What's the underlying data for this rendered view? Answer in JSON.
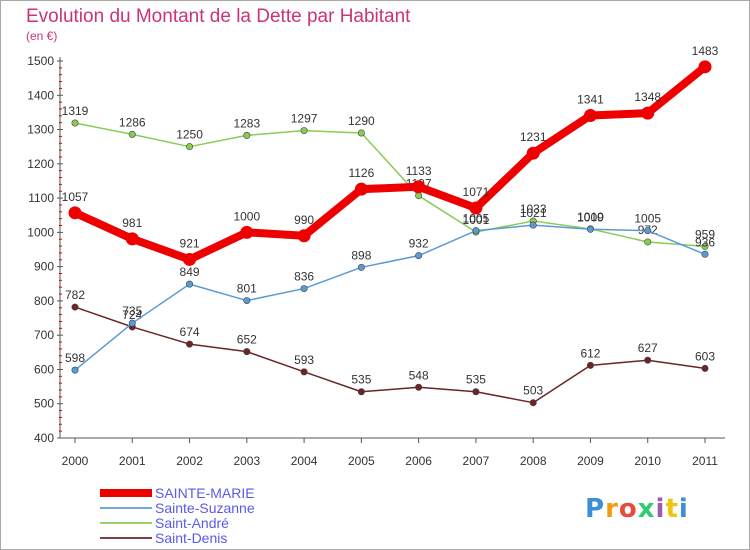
{
  "chart_data": {
    "type": "line",
    "title": "Evolution du Montant de la Dette par Habitant",
    "subtitle": "(en €)",
    "x": [
      "2000",
      "2001",
      "2002",
      "2003",
      "2004",
      "2005",
      "2006",
      "2007",
      "2008",
      "2009",
      "2010",
      "2011"
    ],
    "y_ticks": [
      400,
      500,
      600,
      700,
      800,
      900,
      1000,
      1100,
      1200,
      1300,
      1400,
      1500
    ],
    "ylim": [
      400,
      1500
    ],
    "grid": false,
    "legend_position": "bottom-left",
    "series": [
      {
        "name": "SAINTE-MARIE",
        "color": "#ee0000",
        "values": [
          1057,
          981,
          921,
          1000,
          990,
          1126,
          1133,
          1071,
          1231,
          1341,
          1348,
          1483
        ]
      },
      {
        "name": "Sainte-Suzanne",
        "color": "#5b9bd5",
        "values": [
          598,
          735,
          849,
          801,
          836,
          898,
          932,
          1005,
          1021,
          1009,
          1005,
          936
        ]
      },
      {
        "name": "Saint-André",
        "color": "#88cc55",
        "values": [
          1319,
          1286,
          1250,
          1283,
          1297,
          1290,
          1107,
          1001,
          1033,
          1010,
          972,
          959
        ]
      },
      {
        "name": "Saint-Denis",
        "color": "#6b2525",
        "values": [
          782,
          724,
          674,
          652,
          593,
          535,
          548,
          535,
          503,
          612,
          627,
          603
        ]
      }
    ]
  },
  "branding": {
    "logo": "Proxiti"
  }
}
